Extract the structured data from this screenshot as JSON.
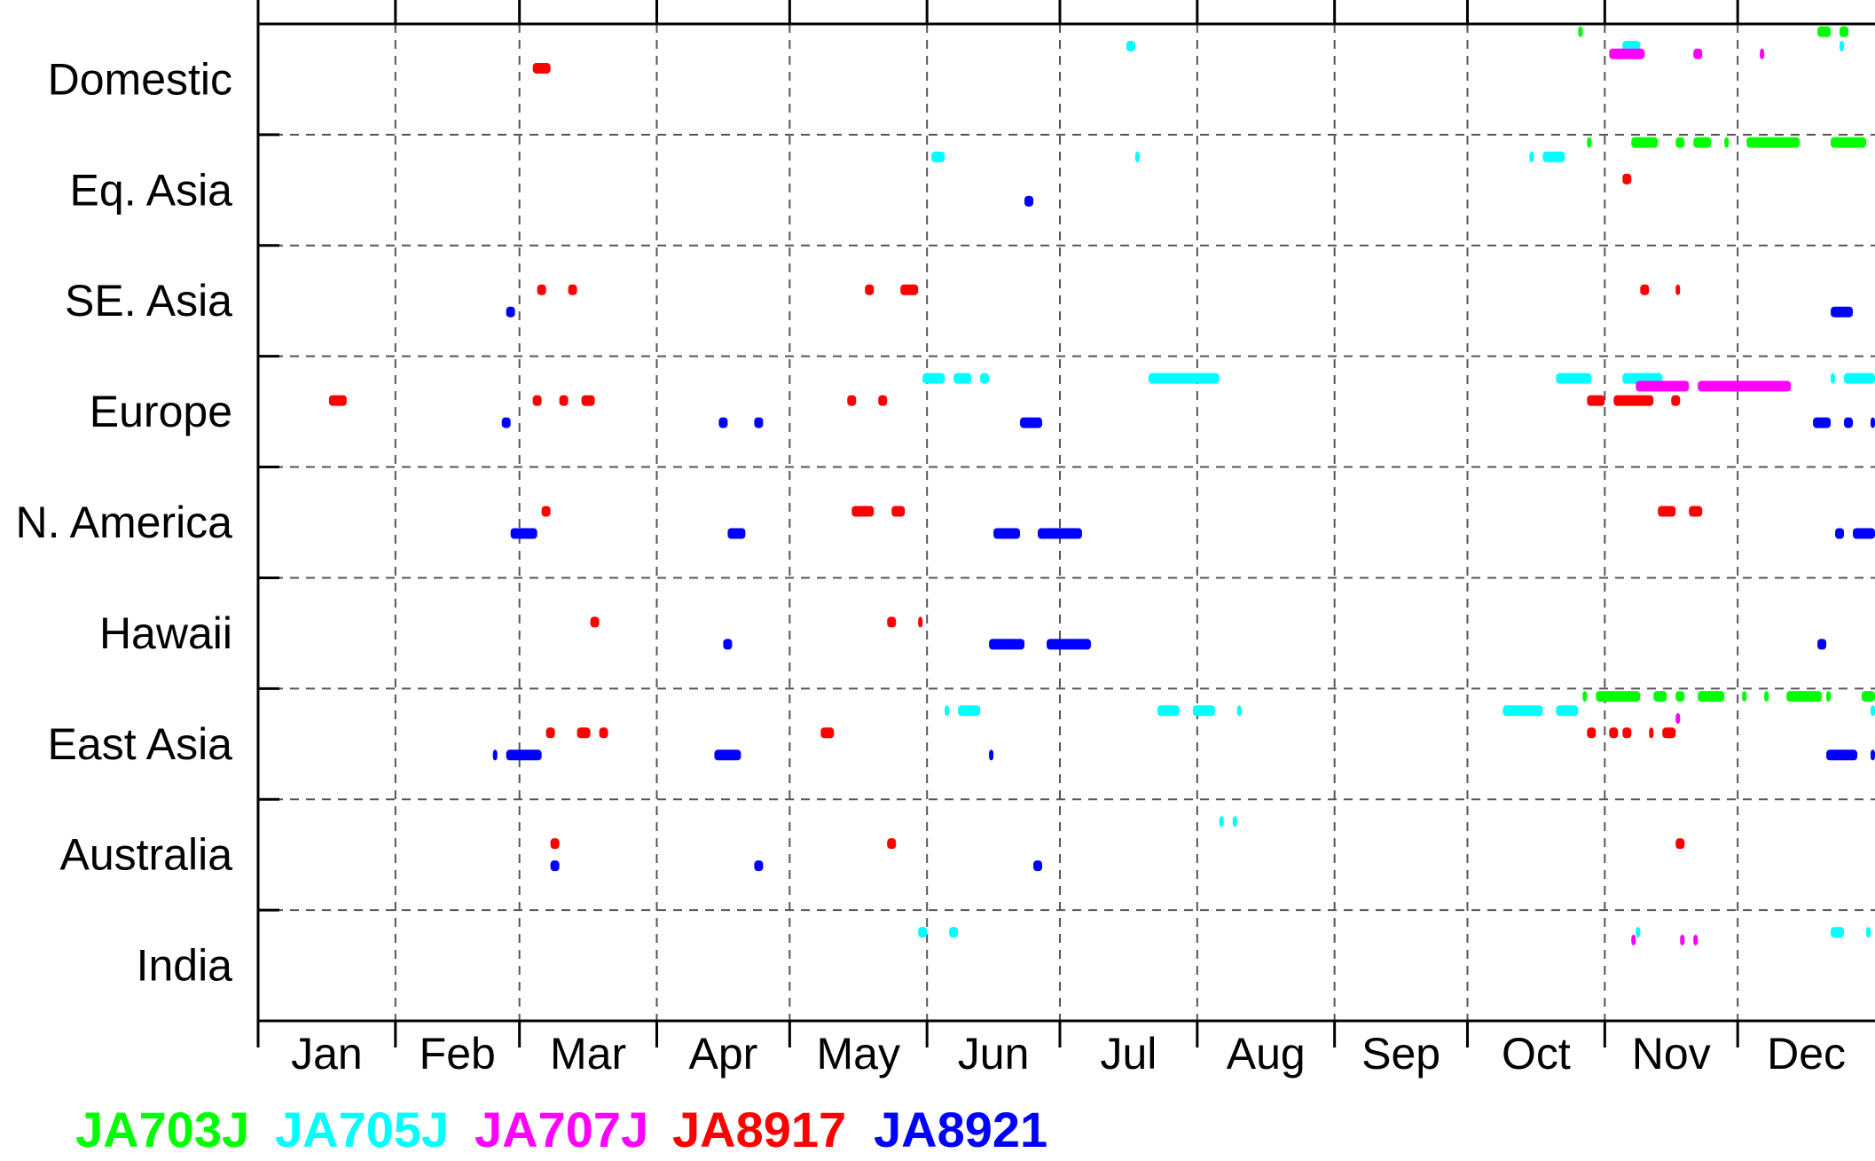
{
  "chart_data": {
    "type": "timeline",
    "categories": [
      "Domestic",
      "Eq. Asia",
      "SE. Asia",
      "Europe",
      "N. America",
      "Hawaii",
      "East Asia",
      "Australia",
      "India"
    ],
    "months": [
      "Jan",
      "Feb",
      "Mar",
      "Apr",
      "May",
      "Jun",
      "Jul",
      "Aug",
      "Sep",
      "Oct",
      "Nov",
      "Dec"
    ],
    "x_unit": "day of year",
    "xlim": [
      1,
      366
    ],
    "grid": true,
    "legend_position": "bottom",
    "series": [
      {
        "name": "JA703J",
        "color": "#00ff00",
        "lane": 0,
        "spans": [
          [
            "Domestic",
            299,
            300
          ],
          [
            "Domestic",
            353,
            356
          ],
          [
            "Domestic",
            358,
            360
          ],
          [
            "Eq. Asia",
            301,
            302
          ],
          [
            "Eq. Asia",
            311,
            317
          ],
          [
            "Eq. Asia",
            321,
            323
          ],
          [
            "Eq. Asia",
            325,
            329
          ],
          [
            "Eq. Asia",
            332,
            333
          ],
          [
            "Eq. Asia",
            337,
            349
          ],
          [
            "Eq. Asia",
            356,
            364
          ],
          [
            "Eq. Asia",
            366,
            367
          ],
          [
            "East Asia",
            300,
            301
          ],
          [
            "East Asia",
            303,
            313
          ],
          [
            "East Asia",
            316,
            319
          ],
          [
            "East Asia",
            321,
            323
          ],
          [
            "East Asia",
            326,
            332
          ],
          [
            "East Asia",
            336,
            337
          ],
          [
            "East Asia",
            341,
            342
          ],
          [
            "East Asia",
            346,
            354
          ],
          [
            "East Asia",
            355,
            356
          ],
          [
            "East Asia",
            363,
            366
          ]
        ]
      },
      {
        "name": "JA705J",
        "color": "#00ffff",
        "lane": 1,
        "spans": [
          [
            "Domestic",
            197,
            199
          ],
          [
            "Domestic",
            309,
            313
          ],
          [
            "Domestic",
            358,
            359
          ],
          [
            "Domestic",
            366,
            367
          ],
          [
            "Eq. Asia",
            153,
            156
          ],
          [
            "Eq. Asia",
            199,
            200
          ],
          [
            "Eq. Asia",
            288,
            289
          ],
          [
            "Eq. Asia",
            291,
            296
          ],
          [
            "Europe",
            151,
            156
          ],
          [
            "Europe",
            158,
            162
          ],
          [
            "Europe",
            164,
            166
          ],
          [
            "Europe",
            202,
            218
          ],
          [
            "Europe",
            294,
            302
          ],
          [
            "Europe",
            309,
            318
          ],
          [
            "Europe",
            356,
            357
          ],
          [
            "Europe",
            359,
            368
          ],
          [
            "East Asia",
            156,
            157
          ],
          [
            "East Asia",
            159,
            164
          ],
          [
            "East Asia",
            204,
            209
          ],
          [
            "East Asia",
            212,
            217
          ],
          [
            "East Asia",
            222,
            223
          ],
          [
            "East Asia",
            282,
            291
          ],
          [
            "East Asia",
            294,
            299
          ],
          [
            "East Asia",
            365,
            368
          ],
          [
            "Australia",
            218,
            219
          ],
          [
            "Australia",
            221,
            222
          ],
          [
            "India",
            150,
            152
          ],
          [
            "India",
            157,
            159
          ],
          [
            "India",
            312,
            313
          ],
          [
            "India",
            356,
            359
          ],
          [
            "India",
            364,
            365
          ]
        ]
      },
      {
        "name": "JA707J",
        "color": "#ff00ff",
        "lane": 2,
        "spans": [
          [
            "Domestic",
            306,
            314
          ],
          [
            "Domestic",
            325,
            327
          ],
          [
            "Domestic",
            340,
            341
          ],
          [
            "Europe",
            312,
            324
          ],
          [
            "Europe",
            326,
            347
          ],
          [
            "East Asia",
            321,
            322
          ],
          [
            "India",
            311,
            312
          ],
          [
            "India",
            322,
            323
          ],
          [
            "India",
            325,
            326
          ]
        ]
      },
      {
        "name": "JA8917",
        "color": "#ff0000",
        "lane": 3,
        "spans": [
          [
            "Domestic",
            63,
            67
          ],
          [
            "Eq. Asia",
            309,
            311
          ],
          [
            "SE. Asia",
            64,
            66
          ],
          [
            "SE. Asia",
            71,
            73
          ],
          [
            "SE. Asia",
            138,
            140
          ],
          [
            "SE. Asia",
            146,
            150
          ],
          [
            "SE. Asia",
            313,
            315
          ],
          [
            "SE. Asia",
            321,
            322
          ],
          [
            "Europe",
            17,
            21
          ],
          [
            "Europe",
            63,
            65
          ],
          [
            "Europe",
            69,
            71
          ],
          [
            "Europe",
            74,
            77
          ],
          [
            "Europe",
            134,
            136
          ],
          [
            "Europe",
            141,
            143
          ],
          [
            "Europe",
            301,
            305
          ],
          [
            "Europe",
            307,
            316
          ],
          [
            "Europe",
            320,
            322
          ],
          [
            "N. America",
            65,
            67
          ],
          [
            "N. America",
            135,
            140
          ],
          [
            "N. America",
            144,
            147
          ],
          [
            "N. America",
            317,
            321
          ],
          [
            "N. America",
            324,
            327
          ],
          [
            "Hawaii",
            76,
            78
          ],
          [
            "Hawaii",
            143,
            145
          ],
          [
            "Hawaii",
            150,
            151
          ],
          [
            "East Asia",
            66,
            68
          ],
          [
            "East Asia",
            73,
            76
          ],
          [
            "East Asia",
            78,
            80
          ],
          [
            "East Asia",
            128,
            131
          ],
          [
            "East Asia",
            301,
            303
          ],
          [
            "East Asia",
            306,
            308
          ],
          [
            "East Asia",
            309,
            311
          ],
          [
            "East Asia",
            315,
            316
          ],
          [
            "East Asia",
            318,
            321
          ],
          [
            "Australia",
            67,
            69
          ],
          [
            "Australia",
            143,
            145
          ],
          [
            "Australia",
            321,
            323
          ]
        ]
      },
      {
        "name": "JA8921",
        "color": "#0000ff",
        "lane": 4,
        "spans": [
          [
            "Eq. Asia",
            174,
            176
          ],
          [
            "SE. Asia",
            57,
            59
          ],
          [
            "SE. Asia",
            356,
            361
          ],
          [
            "Europe",
            56,
            58
          ],
          [
            "Europe",
            105,
            107
          ],
          [
            "Europe",
            113,
            115
          ],
          [
            "Europe",
            173,
            178
          ],
          [
            "Europe",
            352,
            356
          ],
          [
            "Europe",
            359,
            361
          ],
          [
            "Europe",
            365,
            367
          ],
          [
            "N. America",
            58,
            64
          ],
          [
            "N. America",
            107,
            111
          ],
          [
            "N. America",
            167,
            173
          ],
          [
            "N. America",
            177,
            187
          ],
          [
            "N. America",
            357,
            359
          ],
          [
            "N. America",
            361,
            367
          ],
          [
            "Hawaii",
            106,
            108
          ],
          [
            "Hawaii",
            166,
            174
          ],
          [
            "Hawaii",
            179,
            189
          ],
          [
            "Hawaii",
            353,
            355
          ],
          [
            "East Asia",
            54,
            55
          ],
          [
            "East Asia",
            57,
            65
          ],
          [
            "East Asia",
            104,
            110
          ],
          [
            "East Asia",
            166,
            167
          ],
          [
            "East Asia",
            355,
            362
          ],
          [
            "East Asia",
            365,
            368
          ],
          [
            "Australia",
            67,
            69
          ],
          [
            "Australia",
            113,
            115
          ],
          [
            "Australia",
            176,
            178
          ]
        ]
      }
    ]
  }
}
